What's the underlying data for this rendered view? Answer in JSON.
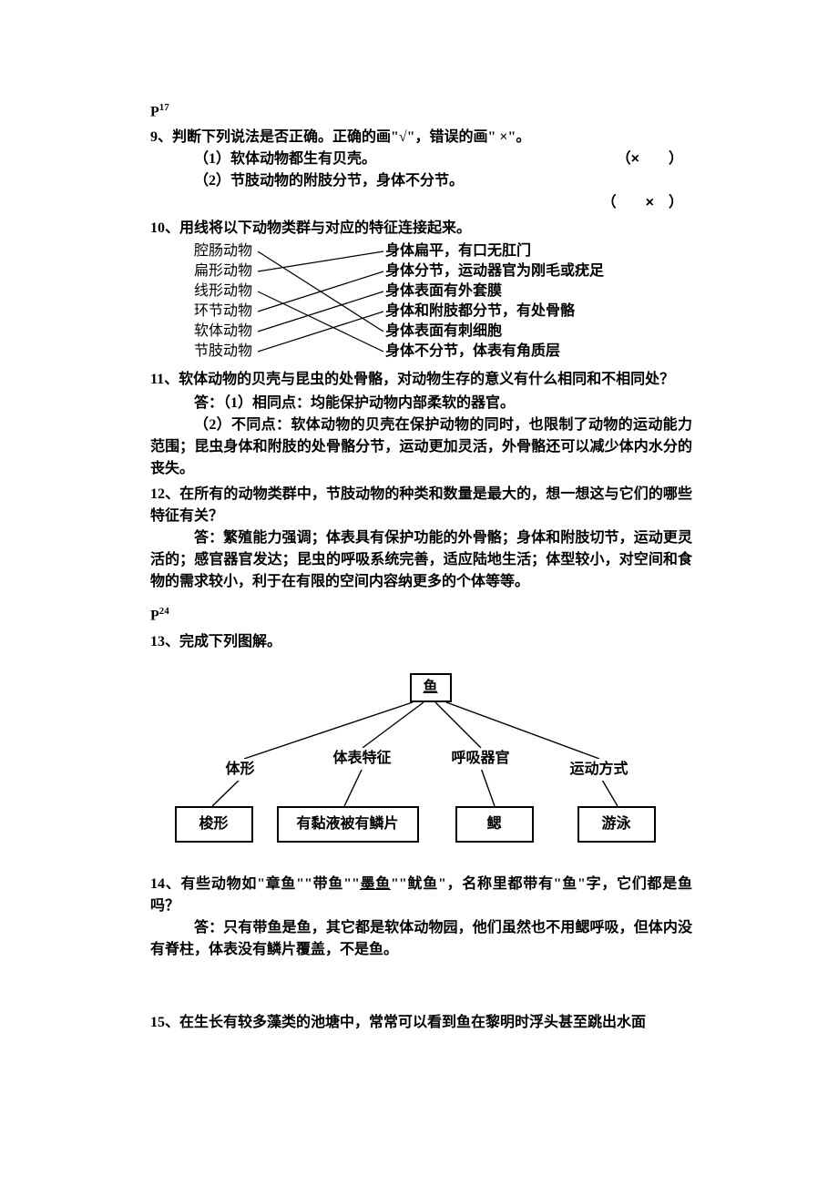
{
  "page_ref_1": "P",
  "page_ref_1_sup": "17",
  "q9": {
    "head": "9、判断下列说法是否正确。正确的画\"√\"，错误的画\" ×\"。",
    "items": [
      {
        "text": "（1）软体动物都生有贝壳。",
        "mark": "×"
      },
      {
        "text": "（2）节肢动物的附肢分节，身体不分节。",
        "mark": "×"
      }
    ]
  },
  "q10": {
    "head": "10、用线将以下动物类群与对应的特征连接起来。",
    "left": [
      "腔肠动物",
      "扁形动物",
      "线形动物",
      "环节动物",
      "软体动物",
      "节肢动物"
    ],
    "right": [
      "身体扁平，有口无肛门",
      "身体分节，运动器官为刚毛或疣足",
      "身体表面有外套膜",
      "身体和附肢都分节，有处骨骼",
      "身体表面有刺细胞",
      "身体不分节，体表有角质层"
    ],
    "edges": [
      [
        0,
        4
      ],
      [
        1,
        0
      ],
      [
        2,
        5
      ],
      [
        3,
        1
      ],
      [
        4,
        2
      ],
      [
        5,
        3
      ]
    ],
    "line_color": "#000000"
  },
  "q11": {
    "head": "11、软体动物的贝壳与昆虫的处骨骼，对动物生存的意义有什么相同和不相同处？",
    "ans1_label": "答：（1）相同点：均能保护动物内部柔软的器官。",
    "ans2": "（2）不同点：软体动物的贝壳在保护动物的同时，也限制了动物的运动能力范围；昆虫身体和附肢的处骨骼分节，运动更加灵活，外骨骼还可以减少体内水分的丧失。"
  },
  "q12": {
    "head": "12、在所有的动物类群中，节肢动物的种类和数量是最大的，想一想这与它们的哪些特征有关？",
    "ans": "答：繁殖能力强调；体表具有保护功能的外骨骼；身体和附肢切节，运动更灵活的；感官器官发达；昆虫的呼吸系统完善，适应陆地生活；体型较小，对空间和食物的需求较小，利于在有限的空间内容纳更多的个体等等。"
  },
  "page_ref_2": "P",
  "page_ref_2_sup": "24",
  "q13": {
    "head": "13、完成下列图解。",
    "root": "鱼",
    "mids": [
      "体形",
      "体表特征",
      "呼吸器官",
      "运动方式"
    ],
    "leaves": [
      "梭形",
      "有黏液被有鳞片",
      "鳃",
      "游泳"
    ],
    "box_border": "#000000"
  },
  "q14": {
    "head_a": "14、有些动物如\"章鱼\"\"带鱼\"\"",
    "head_u": "墨鱼",
    "head_b": "\"\"鱿鱼\"，名称里都带有\"鱼\"字，它们都是鱼吗？",
    "ans": "答：只有带鱼是鱼，其它都是软体动物园，他们虽然也不用鳃呼吸，但体内没有脊柱，体表没有鳞片覆盖，不是鱼。"
  },
  "q15": {
    "head": "15、在生长有较多藻类的池塘中，常常可以看到鱼在黎明时浮头甚至跳出水面"
  }
}
